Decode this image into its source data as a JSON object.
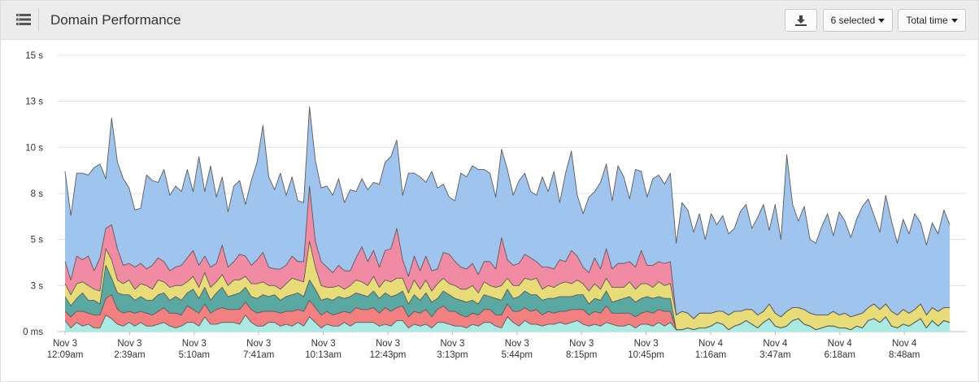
{
  "header": {
    "title": "Domain Performance",
    "selection_label": "6 selected",
    "metric_label": "Total time"
  },
  "icons": {
    "menu": "list-menu-icon",
    "download": "download-icon",
    "caret": "caret-down-icon"
  },
  "chart_data": {
    "type": "area",
    "stacked": true,
    "title": "",
    "xlabel": "",
    "ylabel": "",
    "ylim": [
      0,
      15
    ],
    "y_ticks": [
      0,
      2.5,
      5,
      7.5,
      10,
      12.5,
      15
    ],
    "y_tick_labels": [
      "0 ms",
      "3 s",
      "5 s",
      "8 s",
      "10 s",
      "13 s",
      "15 s"
    ],
    "x_tick_labels": [
      [
        "Nov 3",
        "12:09am"
      ],
      [
        "Nov 3",
        "2:39am"
      ],
      [
        "Nov 3",
        "5:10am"
      ],
      [
        "Nov 3",
        "7:41am"
      ],
      [
        "Nov 3",
        "10:13am"
      ],
      [
        "Nov 3",
        "12:43pm"
      ],
      [
        "Nov 3",
        "3:13pm"
      ],
      [
        "Nov 3",
        "5:44pm"
      ],
      [
        "Nov 3",
        "8:15pm"
      ],
      [
        "Nov 3",
        "10:45pm"
      ],
      [
        "Nov 4",
        "1:16am"
      ],
      [
        "Nov 4",
        "3:47am"
      ],
      [
        "Nov 4",
        "6:18am"
      ],
      [
        "Nov 4",
        "8:48am"
      ]
    ],
    "grid": true,
    "legend": "none",
    "colors": [
      "#a9ebe4",
      "#f28080",
      "#5aa8a2",
      "#e8dc78",
      "#f08ba3",
      "#9fc5ef"
    ],
    "top_totals": [
      8.7,
      6.3,
      8.6,
      8.6,
      8.5,
      8.9,
      9.1,
      8.3,
      11.6,
      9.2,
      8.3,
      7.8,
      6.6,
      6.7,
      8.5,
      8.2,
      8.1,
      8.8,
      7.4,
      7.9,
      7.6,
      8.8,
      7.6,
      9.5,
      7.6,
      9.0,
      7.3,
      8.4,
      6.5,
      7.9,
      8.2,
      6.9,
      8.2,
      9.2,
      11.2,
      8.4,
      7.7,
      8.6,
      7.4,
      8.4,
      7.1,
      7.0,
      12.2,
      9.3,
      7.8,
      7.9,
      7.4,
      8.3,
      7.0,
      7.7,
      7.6,
      8.3,
      7.7,
      8.1,
      8.0,
      9.2,
      9.5,
      10.4,
      7.4,
      8.6,
      8.6,
      8.4,
      8.1,
      8.7,
      7.8,
      8.0,
      7.3,
      7.1,
      8.6,
      8.4,
      9.0,
      8.8,
      8.8,
      8.6,
      7.3,
      9.9,
      8.8,
      7.4,
      8.2,
      8.6,
      7.6,
      7.4,
      8.4,
      7.6,
      8.7,
      7.0,
      8.6,
      9.8,
      7.4,
      6.4,
      7.3,
      7.6,
      8.1,
      9.1,
      7.1,
      9.0,
      8.4,
      7.2,
      8.8,
      8.7,
      7.3,
      8.3,
      8.5,
      8.0,
      8.6,
      4.8,
      7.0,
      6.6,
      5.4,
      6.4,
      5.0,
      6.4,
      5.8,
      6.3,
      5.3,
      5.6,
      6.5,
      6.9,
      5.6,
      6.2,
      6.9,
      5.5,
      6.9,
      5.0,
      9.6,
      6.9,
      6.0,
      6.8,
      5.0,
      4.8,
      5.7,
      6.4,
      5.2,
      6.5,
      6.0,
      5.1,
      6.1,
      6.8,
      7.2,
      6.3,
      5.4,
      7.4,
      6.0,
      4.8,
      6.1,
      5.3,
      6.4,
      5.9,
      4.7,
      5.9,
      5.3,
      6.6,
      5.8
    ],
    "series": [
      {
        "values": [
          0.6,
          0.2,
          0.5,
          0.3,
          0.4,
          0.2,
          0.2,
          0.9,
          0.7,
          0.4,
          0.3,
          0.5,
          0.3,
          0.5,
          0.3,
          0.3,
          0.4,
          0.5,
          0.3,
          0.2,
          0.3,
          0.5,
          0.5,
          0.3,
          0.8,
          0.4,
          0.4,
          0.5,
          0.5,
          0.5,
          0.4,
          0.9,
          0.5,
          0.3,
          0.3,
          0.5,
          0.5,
          0.3,
          0.4,
          0.3,
          0.5,
          0.3,
          0.8,
          0.5,
          0.2,
          0.4,
          0.3,
          0.3,
          0.5,
          0.3,
          0.5,
          0.5,
          0.5,
          0.5,
          0.3,
          0.4,
          0.3,
          0.6,
          0.6,
          0.2,
          0.4,
          0.3,
          0.4,
          0.2,
          0.5,
          0.5,
          0.4,
          0.3,
          0.3,
          0.2,
          0.4,
          0.3,
          0.5,
          0.5,
          0.3,
          0.2,
          0.8,
          0.5,
          0.3,
          0.6,
          0.4,
          0.4,
          0.3,
          0.4,
          0.4,
          0.5,
          0.4,
          0.5,
          0.6,
          0.4,
          0.3,
          0.4,
          0.3,
          0.5,
          0.4,
          0.3,
          0.3,
          0.4,
          0.2,
          0.4,
          0.4,
          0.3,
          0.5,
          0.3,
          0.5,
          0.1,
          0.1,
          0.2,
          0.1,
          0.2,
          0.2,
          0.3,
          0.5,
          0.4,
          0.1,
          0.3,
          0.4,
          0.6,
          0.4,
          0.2,
          0.5,
          0.7,
          0.3,
          0.2,
          0.3,
          0.6,
          0.7,
          0.4,
          0.3,
          0.1,
          0.2,
          0.3,
          0.3,
          0.2,
          0.2,
          0.1,
          0.3,
          0.2,
          0.6,
          0.7,
          0.5,
          0.8,
          0.3,
          0.2,
          0.4,
          0.3,
          0.5,
          0.7,
          0.2,
          0.6,
          0.3,
          0.6,
          0.5
        ]
      },
      {
        "values": [
          0.5,
          0.6,
          0.6,
          0.8,
          0.6,
          0.7,
          0.7,
          0.9,
          1.3,
          0.8,
          0.7,
          0.6,
          0.7,
          0.6,
          0.7,
          0.6,
          0.7,
          0.8,
          0.7,
          0.8,
          0.6,
          0.9,
          0.7,
          0.7,
          0.7,
          0.6,
          0.8,
          0.8,
          0.7,
          0.7,
          0.8,
          0.7,
          0.7,
          0.7,
          0.8,
          0.6,
          0.6,
          0.7,
          0.7,
          0.8,
          0.7,
          0.8,
          0.9,
          0.8,
          0.7,
          0.7,
          0.6,
          0.7,
          0.6,
          0.7,
          0.8,
          0.7,
          0.7,
          0.8,
          0.7,
          0.9,
          0.8,
          0.7,
          0.8,
          0.6,
          0.7,
          0.7,
          0.8,
          0.6,
          0.7,
          0.9,
          0.7,
          0.8,
          0.6,
          0.6,
          0.6,
          0.6,
          0.7,
          0.7,
          0.6,
          0.7,
          0.7,
          0.6,
          0.8,
          0.7,
          0.7,
          0.8,
          0.6,
          0.7,
          0.6,
          0.6,
          0.7,
          0.7,
          0.6,
          0.8,
          0.6,
          0.7,
          0.7,
          0.9,
          0.6,
          0.7,
          0.7,
          0.6,
          0.6,
          0.6,
          0.7,
          0.7,
          0.7,
          0.8,
          0.6,
          0.0,
          0.0,
          0.0,
          0.0,
          0.0,
          0.0,
          0.0,
          0.0,
          0.0,
          0.0,
          0.0,
          0.0,
          0.0,
          0.0,
          0.0,
          0.0,
          0.0,
          0.0,
          0.0,
          0.0,
          0.0,
          0.0,
          0.0,
          0.0,
          0.0,
          0.0,
          0.0,
          0.0,
          0.0,
          0.0,
          0.0,
          0.0,
          0.0,
          0.0,
          0.0,
          0.0,
          0.0,
          0.0,
          0.0,
          0.0,
          0.0,
          0.0,
          0.0,
          0.0,
          0.0,
          0.0,
          0.0,
          0.0
        ]
      },
      {
        "values": [
          0.8,
          0.6,
          0.7,
          1.0,
          0.7,
          0.8,
          0.6,
          1.8,
          0.9,
          0.9,
          1.0,
          0.9,
          0.7,
          0.8,
          0.7,
          0.8,
          0.9,
          0.8,
          0.7,
          0.9,
          0.8,
          0.7,
          1.1,
          0.8,
          0.9,
          0.7,
          0.9,
          1.1,
          0.7,
          0.8,
          0.9,
          0.8,
          0.7,
          0.8,
          0.9,
          0.8,
          0.9,
          0.7,
          0.8,
          0.9,
          0.9,
          0.8,
          1.1,
          1.0,
          0.8,
          0.7,
          0.8,
          0.9,
          0.7,
          0.9,
          0.8,
          0.8,
          0.7,
          0.9,
          0.8,
          0.8,
          0.8,
          0.7,
          0.8,
          0.7,
          0.9,
          0.7,
          0.9,
          0.8,
          0.6,
          0.8,
          0.9,
          0.7,
          0.8,
          0.8,
          0.7,
          0.6,
          0.8,
          0.7,
          0.9,
          0.8,
          0.8,
          0.7,
          0.8,
          0.9,
          0.9,
          0.8,
          0.8,
          0.7,
          0.8,
          0.8,
          0.8,
          0.7,
          0.8,
          0.8,
          0.6,
          0.7,
          0.7,
          0.8,
          0.6,
          0.7,
          0.8,
          0.9,
          0.8,
          0.8,
          0.8,
          0.8,
          0.7,
          0.7,
          0.7,
          0.0,
          0.0,
          0.0,
          0.0,
          0.0,
          0.0,
          0.0,
          0.0,
          0.0,
          0.0,
          0.0,
          0.0,
          0.0,
          0.0,
          0.0,
          0.0,
          0.0,
          0.0,
          0.0,
          0.0,
          0.0,
          0.0,
          0.0,
          0.0,
          0.0,
          0.0,
          0.0,
          0.0,
          0.0,
          0.0,
          0.0,
          0.0,
          0.0,
          0.0,
          0.0,
          0.0,
          0.0,
          0.0,
          0.0,
          0.0,
          0.0,
          0.0,
          0.0,
          0.0,
          0.0,
          0.0,
          0.0,
          0.0
        ]
      },
      {
        "values": [
          0.7,
          0.6,
          0.8,
          0.6,
          0.8,
          0.6,
          0.7,
          0.9,
          1.0,
          0.7,
          0.6,
          0.8,
          0.6,
          0.7,
          0.8,
          0.6,
          0.8,
          0.6,
          0.7,
          0.6,
          0.8,
          0.6,
          0.7,
          0.6,
          0.8,
          0.7,
          0.6,
          0.7,
          0.6,
          0.8,
          0.7,
          0.6,
          0.7,
          0.8,
          0.7,
          0.6,
          0.5,
          0.6,
          0.7,
          0.9,
          0.7,
          0.8,
          2.1,
          1.2,
          0.8,
          0.6,
          0.7,
          0.6,
          0.5,
          0.6,
          0.7,
          0.7,
          0.6,
          0.8,
          0.6,
          0.7,
          0.8,
          0.9,
          0.7,
          0.6,
          0.8,
          0.6,
          0.7,
          0.6,
          0.8,
          0.7,
          0.6,
          0.7,
          0.6,
          0.7,
          0.8,
          0.6,
          0.7,
          0.6,
          0.6,
          0.8,
          0.6,
          0.7,
          0.6,
          0.7,
          0.8,
          0.9,
          0.6,
          0.7,
          0.6,
          0.7,
          0.8,
          0.7,
          0.8,
          0.6,
          0.7,
          0.8,
          0.6,
          0.7,
          0.8,
          0.7,
          0.6,
          0.8,
          0.7,
          0.8,
          0.7,
          0.6,
          0.8,
          0.7,
          0.8,
          0.8,
          1.0,
          0.8,
          0.6,
          0.8,
          0.8,
          0.7,
          0.6,
          0.7,
          0.8,
          0.8,
          0.7,
          0.6,
          0.8,
          0.7,
          0.6,
          0.8,
          0.7,
          0.6,
          0.8,
          0.7,
          0.6,
          0.8,
          0.7,
          0.8,
          0.7,
          0.6,
          0.8,
          0.7,
          0.8,
          0.7,
          0.6,
          0.8,
          0.7,
          0.8,
          0.7,
          0.7,
          0.8,
          0.7,
          0.8,
          0.7,
          0.7,
          0.8,
          0.7,
          0.7,
          0.8,
          0.7,
          0.8
        ]
      },
      {
        "values": [
          1.2,
          0.8,
          1.5,
          1.2,
          1.6,
          1.0,
          1.8,
          1.1,
          1.9,
          1.7,
          1.0,
          0.9,
          1.2,
          1.1,
          0.9,
          1.3,
          1.2,
          1.1,
          0.9,
          1.0,
          1.1,
          1.3,
          1.4,
          1.2,
          0.9,
          1.1,
          1.0,
          1.6,
          1.0,
          1.0,
          1.4,
          1.1,
          1.0,
          1.3,
          1.6,
          1.0,
          0.9,
          1.1,
          1.0,
          1.2,
          1.0,
          1.1,
          3.0,
          1.4,
          1.3,
          1.1,
          0.8,
          1.1,
          1.0,
          0.8,
          1.2,
          1.9,
          1.3,
          1.4,
          1.1,
          1.6,
          1.8,
          2.7,
          1.0,
          0.9,
          1.3,
          1.0,
          1.3,
          1.1,
          0.8,
          1.4,
          1.6,
          1.3,
          1.2,
          1.1,
          1.2,
          1.0,
          1.1,
          1.3,
          1.0,
          2.6,
          1.0,
          1.1,
          1.2,
          1.3,
          1.2,
          0.9,
          1.2,
          1.0,
          1.0,
          1.3,
          1.1,
          1.8,
          1.3,
          0.9,
          1.0,
          1.4,
          1.1,
          1.6,
          1.0,
          1.3,
          1.3,
          1.1,
          1.2,
          1.8,
          1.0,
          1.2,
          1.1,
          1.2,
          1.2,
          0.0,
          0.0,
          0.0,
          0.0,
          0.0,
          0.0,
          0.0,
          0.0,
          0.0,
          0.0,
          0.0,
          0.0,
          0.0,
          0.0,
          0.0,
          0.0,
          0.0,
          0.0,
          0.0,
          0.0,
          0.0,
          0.0,
          0.0,
          0.0,
          0.0,
          0.0,
          0.0,
          0.0,
          0.0,
          0.0,
          0.0,
          0.0,
          0.0,
          0.0,
          0.0,
          0.0,
          0.0,
          0.0,
          0.0,
          0.0,
          0.0,
          0.0,
          0.0,
          0.0,
          0.0,
          0.0,
          0.0,
          0.0
        ]
      },
      {
        "values": [
          4.9,
          3.5,
          4.5,
          4.7,
          4.4,
          5.6,
          5.1,
          2.7,
          5.8,
          4.7,
          4.7,
          4.1,
          3.1,
          3.0,
          4.1,
          4.6,
          4.1,
          5.0,
          3.1,
          4.4,
          4.0,
          4.8,
          3.2,
          5.9,
          3.5,
          5.5,
          3.6,
          3.7,
          3.0,
          4.1,
          4.0,
          2.8,
          4.6,
          5.3,
          6.9,
          4.9,
          4.3,
          5.2,
          3.8,
          4.3,
          3.3,
          3.2,
          4.3,
          4.4,
          4.0,
          4.4,
          4.2,
          4.7,
          3.7,
          4.4,
          3.6,
          3.7,
          3.9,
          3.7,
          4.5,
          4.8,
          5.0,
          4.8,
          3.5,
          5.6,
          4.5,
          5.1,
          4.0,
          5.4,
          4.4,
          3.7,
          3.1,
          3.3,
          5.1,
          4.8,
          5.3,
          5.7,
          4.7,
          4.8,
          3.9,
          4.8,
          4.9,
          3.8,
          4.5,
          4.4,
          3.4,
          3.6,
          4.9,
          3.8,
          5.3,
          2.9,
          4.6,
          5.4,
          3.3,
          2.9,
          4.1,
          3.4,
          4.4,
          4.6,
          3.7,
          5.3,
          4.7,
          3.4,
          5.3,
          4.3,
          4.0,
          4.8,
          4.7,
          4.3,
          4.8,
          3.9,
          5.9,
          5.6,
          4.7,
          5.4,
          4.0,
          5.4,
          4.7,
          5.2,
          4.4,
          4.5,
          5.4,
          5.7,
          4.4,
          5.3,
          5.8,
          4.0,
          5.9,
          4.2,
          8.5,
          5.6,
          4.7,
          6.0,
          4.0,
          3.9,
          4.8,
          5.5,
          4.1,
          5.6,
          5.0,
          4.3,
          5.0,
          5.8,
          5.9,
          4.8,
          4.2,
          5.9,
          4.9,
          3.9,
          4.9,
          4.3,
          5.2,
          4.4,
          3.8,
          4.6,
          4.2,
          5.3,
          4.5
        ]
      }
    ]
  }
}
